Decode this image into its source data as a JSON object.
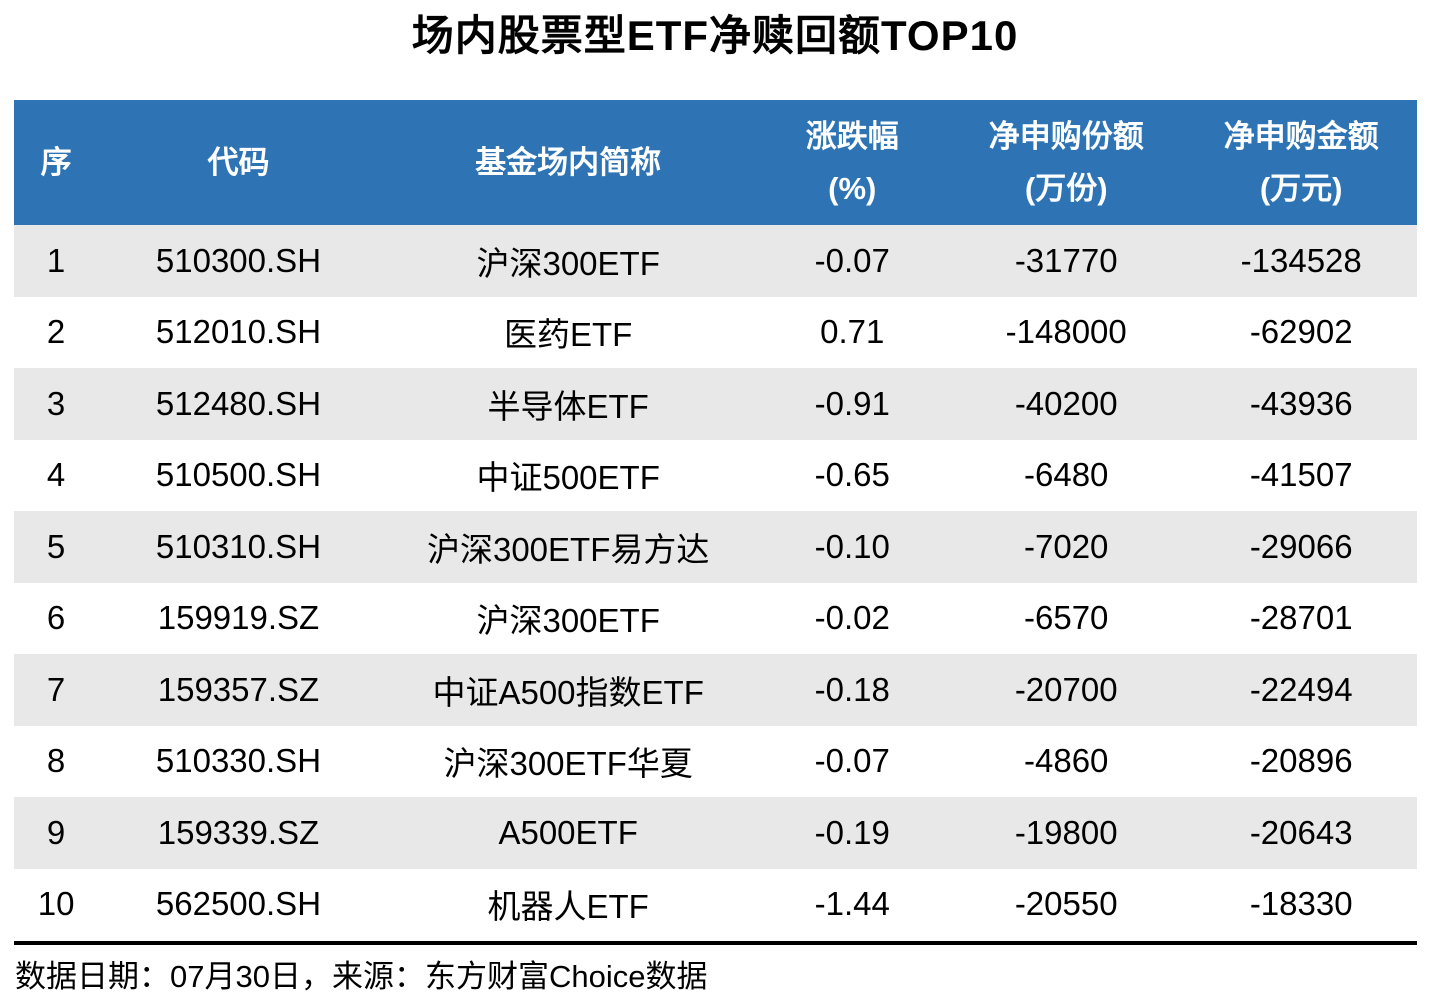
{
  "page": {
    "title": "场内股票型ETF净赎回额TOP10",
    "footer": "数据日期：07月30日，来源：东方财富Choice数据"
  },
  "colors": {
    "header_bg": "#2E74B5",
    "header_text": "#FFFFFF",
    "row_alt_bg": "#E8E8E8",
    "body_text": "#000000",
    "divider": "#000000"
  },
  "table": {
    "columns": [
      {
        "label": "序",
        "sub": ""
      },
      {
        "label": "代码",
        "sub": ""
      },
      {
        "label": "基金场内简称",
        "sub": ""
      },
      {
        "label": "涨跌幅",
        "sub": "(%)"
      },
      {
        "label": "净申购份额",
        "sub": "(万份)"
      },
      {
        "label": "净申购金额",
        "sub": "(万元)"
      }
    ],
    "rows": [
      [
        "1",
        "510300.SH",
        "沪深300ETF",
        "-0.07",
        "-31770",
        "-134528"
      ],
      [
        "2",
        "512010.SH",
        "医药ETF",
        "0.71",
        "-148000",
        "-62902"
      ],
      [
        "3",
        "512480.SH",
        "半导体ETF",
        "-0.91",
        "-40200",
        "-43936"
      ],
      [
        "4",
        "510500.SH",
        "中证500ETF",
        "-0.65",
        "-6480",
        "-41507"
      ],
      [
        "5",
        "510310.SH",
        "沪深300ETF易方达",
        "-0.10",
        "-7020",
        "-29066"
      ],
      [
        "6",
        "159919.SZ",
        "沪深300ETF",
        "-0.02",
        "-6570",
        "-28701"
      ],
      [
        "7",
        "159357.SZ",
        "中证A500指数ETF",
        "-0.18",
        "-20700",
        "-22494"
      ],
      [
        "8",
        "510330.SH",
        "沪深300ETF华夏",
        "-0.07",
        "-4860",
        "-20896"
      ],
      [
        "9",
        "159339.SZ",
        "A500ETF",
        "-0.19",
        "-19800",
        "-20643"
      ],
      [
        "10",
        "562500.SH",
        "机器人ETF",
        "-1.44",
        "-20550",
        "-18330"
      ]
    ]
  },
  "chart_data": {
    "type": "table",
    "title": "场内股票型ETF净赎回额TOP10",
    "columns": [
      "序",
      "代码",
      "基金场内简称",
      "涨跌幅(%)",
      "净申购份额(万份)",
      "净申购金额(万元)"
    ],
    "rows": [
      [
        1,
        "510300.SH",
        "沪深300ETF",
        -0.07,
        -31770,
        -134528
      ],
      [
        2,
        "512010.SH",
        "医药ETF",
        0.71,
        -148000,
        -62902
      ],
      [
        3,
        "512480.SH",
        "半导体ETF",
        -0.91,
        -40200,
        -43936
      ],
      [
        4,
        "510500.SH",
        "中证500ETF",
        -0.65,
        -6480,
        -41507
      ],
      [
        5,
        "510310.SH",
        "沪深300ETF易方达",
        -0.1,
        -7020,
        -29066
      ],
      [
        6,
        "159919.SZ",
        "沪深300ETF",
        -0.02,
        -6570,
        -28701
      ],
      [
        7,
        "159357.SZ",
        "中证A500指数ETF",
        -0.18,
        -20700,
        -22494
      ],
      [
        8,
        "510330.SH",
        "沪深300ETF华夏",
        -0.07,
        -4860,
        -20896
      ],
      [
        9,
        "159339.SZ",
        "A500ETF",
        -0.19,
        -19800,
        -20643
      ],
      [
        10,
        "562500.SH",
        "机器人ETF",
        -1.44,
        -20550,
        -18330
      ]
    ],
    "source_note": "数据日期：07月30日，来源：东方财富Choice数据",
    "layout": {
      "alternating_row_shading": true,
      "header_style": "blue-banner",
      "alignment": "center"
    }
  }
}
